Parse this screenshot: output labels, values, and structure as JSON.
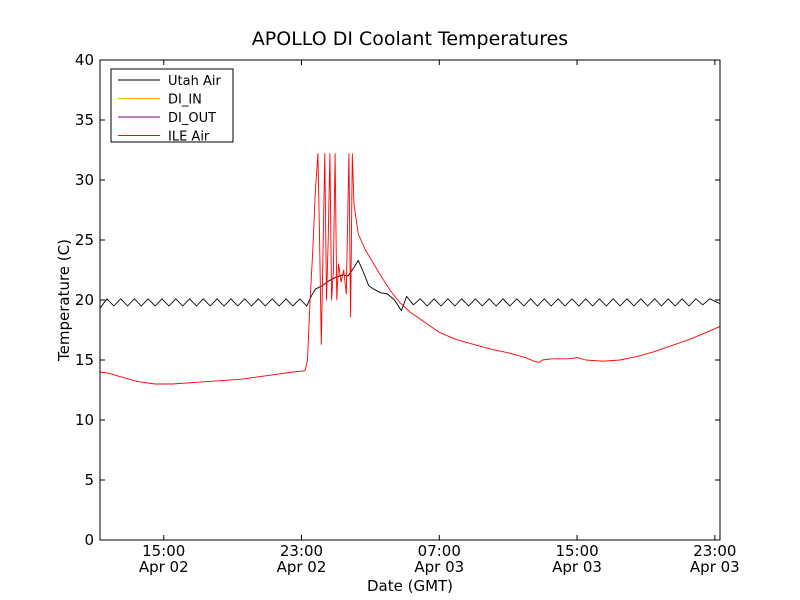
{
  "chart_data": {
    "type": "line",
    "title": "APOLLO DI Coolant Temperatures",
    "xlabel": "Date (GMT)",
    "ylabel": "Temperature (C)",
    "xlim_hours": [
      11.3,
      47.3
    ],
    "ylim": [
      0,
      40
    ],
    "yticks": [
      0,
      5,
      10,
      15,
      20,
      25,
      30,
      35,
      40
    ],
    "xticks": [
      {
        "hour": 15,
        "time": "15:00",
        "date": "Apr 02"
      },
      {
        "hour": 23,
        "time": "23:00",
        "date": "Apr 02"
      },
      {
        "hour": 31,
        "time": "07:00",
        "date": "Apr 03"
      },
      {
        "hour": 39,
        "time": "15:00",
        "date": "Apr 03"
      },
      {
        "hour": 47,
        "time": "23:00",
        "date": "Apr 03"
      }
    ],
    "legend_position": "top-left",
    "series": [
      {
        "name": "Utah Air",
        "color": "#000000",
        "points": [
          [
            11.3,
            19.3
          ],
          [
            11.7,
            20.1
          ],
          [
            12.1,
            19.5
          ],
          [
            12.5,
            20.1
          ],
          [
            12.9,
            19.5
          ],
          [
            13.3,
            20.1
          ],
          [
            13.7,
            19.5
          ],
          [
            14.1,
            20.1
          ],
          [
            14.5,
            19.5
          ],
          [
            14.9,
            20.1
          ],
          [
            15.3,
            19.5
          ],
          [
            15.7,
            20.1
          ],
          [
            16.1,
            19.5
          ],
          [
            16.5,
            20.1
          ],
          [
            16.9,
            19.5
          ],
          [
            17.3,
            20.1
          ],
          [
            17.7,
            19.5
          ],
          [
            18.1,
            20.1
          ],
          [
            18.5,
            19.5
          ],
          [
            18.9,
            20.1
          ],
          [
            19.3,
            19.5
          ],
          [
            19.7,
            20.1
          ],
          [
            20.1,
            19.5
          ],
          [
            20.5,
            20.1
          ],
          [
            20.9,
            19.5
          ],
          [
            21.3,
            20.1
          ],
          [
            21.7,
            19.5
          ],
          [
            22.1,
            20.1
          ],
          [
            22.5,
            19.5
          ],
          [
            22.9,
            20.1
          ],
          [
            23.3,
            19.5
          ],
          [
            23.6,
            20.4
          ],
          [
            23.8,
            20.9
          ],
          [
            24.2,
            21.2
          ],
          [
            24.6,
            21.6
          ],
          [
            25.0,
            21.9
          ],
          [
            25.4,
            22.1
          ],
          [
            25.7,
            22.0
          ],
          [
            26.0,
            22.6
          ],
          [
            26.3,
            23.3
          ],
          [
            26.6,
            22.3
          ],
          [
            26.9,
            21.2
          ],
          [
            27.2,
            20.9
          ],
          [
            27.6,
            20.6
          ],
          [
            28.0,
            20.5
          ],
          [
            28.4,
            20.0
          ],
          [
            28.8,
            19.1
          ],
          [
            29.1,
            20.3
          ],
          [
            29.5,
            19.6
          ],
          [
            29.9,
            20.1
          ],
          [
            30.3,
            19.5
          ],
          [
            30.7,
            20.1
          ],
          [
            31.1,
            19.5
          ],
          [
            31.5,
            20.1
          ],
          [
            31.9,
            19.5
          ],
          [
            32.3,
            20.1
          ],
          [
            32.7,
            19.5
          ],
          [
            33.1,
            20.1
          ],
          [
            33.5,
            19.5
          ],
          [
            33.9,
            20.1
          ],
          [
            34.3,
            19.5
          ],
          [
            34.7,
            20.1
          ],
          [
            35.1,
            19.5
          ],
          [
            35.5,
            20.1
          ],
          [
            35.9,
            19.5
          ],
          [
            36.3,
            20.1
          ],
          [
            36.7,
            19.5
          ],
          [
            37.1,
            20.1
          ],
          [
            37.5,
            19.5
          ],
          [
            37.9,
            20.1
          ],
          [
            38.3,
            19.5
          ],
          [
            38.7,
            20.1
          ],
          [
            39.1,
            19.5
          ],
          [
            39.5,
            20.1
          ],
          [
            39.9,
            19.5
          ],
          [
            40.3,
            20.1
          ],
          [
            40.7,
            19.5
          ],
          [
            41.1,
            20.1
          ],
          [
            41.5,
            19.5
          ],
          [
            41.9,
            20.1
          ],
          [
            42.3,
            19.5
          ],
          [
            42.7,
            20.1
          ],
          [
            43.1,
            19.5
          ],
          [
            43.5,
            20.1
          ],
          [
            43.9,
            19.5
          ],
          [
            44.3,
            20.1
          ],
          [
            44.7,
            19.5
          ],
          [
            45.1,
            20.1
          ],
          [
            45.5,
            19.5
          ],
          [
            45.9,
            20.1
          ],
          [
            46.3,
            19.6
          ],
          [
            46.7,
            20.1
          ],
          [
            47.3,
            19.7
          ]
        ]
      },
      {
        "name": "DI_IN",
        "color": "#ffb000",
        "points": []
      },
      {
        "name": "DI_OUT",
        "color": "#800080",
        "points": []
      },
      {
        "name": "ILE Air",
        "color": "#ff0000",
        "points": [
          [
            11.3,
            14.0
          ],
          [
            11.8,
            13.9
          ],
          [
            12.5,
            13.6
          ],
          [
            13.5,
            13.2
          ],
          [
            14.5,
            13.0
          ],
          [
            15.5,
            13.0
          ],
          [
            16.5,
            13.1
          ],
          [
            17.5,
            13.2
          ],
          [
            18.5,
            13.3
          ],
          [
            19.5,
            13.4
          ],
          [
            20.5,
            13.6
          ],
          [
            21.5,
            13.8
          ],
          [
            22.5,
            14.0
          ],
          [
            23.2,
            14.1
          ],
          [
            23.35,
            15.0
          ],
          [
            23.5,
            20.0
          ],
          [
            23.65,
            24.0
          ],
          [
            23.8,
            29.0
          ],
          [
            23.95,
            32.2
          ],
          [
            24.05,
            25.0
          ],
          [
            24.15,
            16.3
          ],
          [
            24.25,
            24.0
          ],
          [
            24.35,
            32.2
          ],
          [
            24.45,
            20.0
          ],
          [
            24.55,
            25.0
          ],
          [
            24.65,
            32.2
          ],
          [
            24.75,
            20.0
          ],
          [
            24.85,
            22.5
          ],
          [
            24.95,
            32.2
          ],
          [
            25.05,
            20.0
          ],
          [
            25.15,
            23.0
          ],
          [
            25.3,
            21.5
          ],
          [
            25.45,
            22.5
          ],
          [
            25.6,
            20.5
          ],
          [
            25.75,
            32.2
          ],
          [
            25.85,
            18.6
          ],
          [
            25.95,
            32.2
          ],
          [
            26.05,
            28.0
          ],
          [
            26.3,
            25.5
          ],
          [
            26.7,
            24.2
          ],
          [
            27.2,
            23.0
          ],
          [
            27.7,
            21.8
          ],
          [
            28.2,
            20.7
          ],
          [
            28.7,
            19.8
          ],
          [
            29.3,
            19.0
          ],
          [
            30.0,
            18.3
          ],
          [
            31.0,
            17.3
          ],
          [
            32.0,
            16.7
          ],
          [
            33.0,
            16.3
          ],
          [
            34.0,
            15.9
          ],
          [
            35.0,
            15.6
          ],
          [
            36.0,
            15.2
          ],
          [
            36.5,
            14.9
          ],
          [
            36.8,
            14.8
          ],
          [
            37.0,
            15.0
          ],
          [
            37.5,
            15.1
          ],
          [
            38.5,
            15.1
          ],
          [
            39.0,
            15.2
          ],
          [
            39.5,
            15.0
          ],
          [
            40.5,
            14.9
          ],
          [
            41.5,
            15.0
          ],
          [
            42.5,
            15.3
          ],
          [
            43.5,
            15.7
          ],
          [
            44.5,
            16.2
          ],
          [
            45.5,
            16.7
          ],
          [
            46.5,
            17.3
          ],
          [
            47.3,
            17.8
          ]
        ]
      }
    ]
  }
}
